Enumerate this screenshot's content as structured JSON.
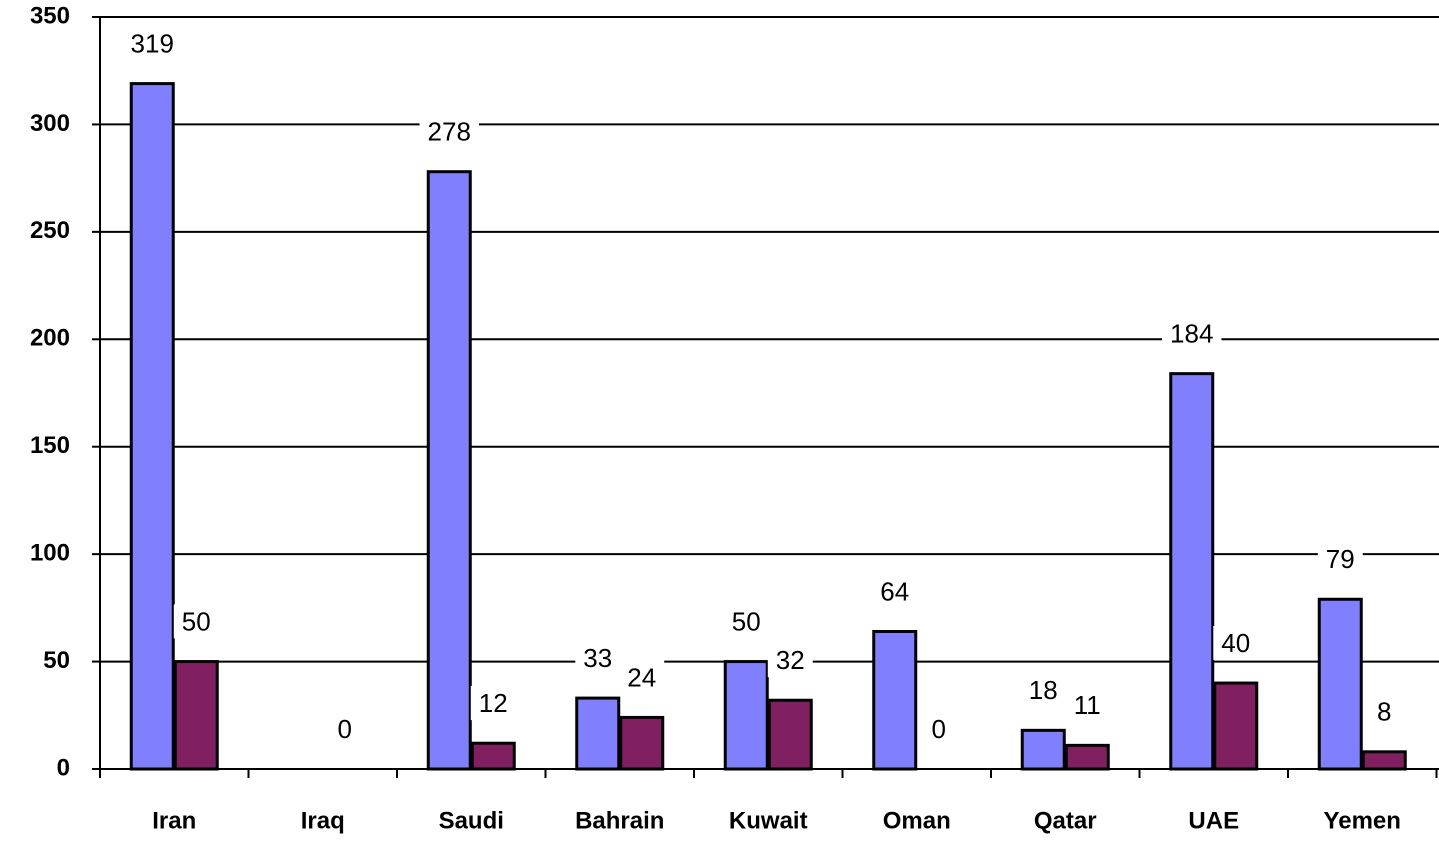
{
  "chart_data": {
    "type": "bar",
    "categories": [
      "Iran",
      "Iraq",
      "Saudi",
      "Bahrain",
      "Kuwait",
      "Oman",
      "Qatar",
      "UAE",
      "Yemen"
    ],
    "series": [
      {
        "color": "#8080ff",
        "values": [
          319,
          null,
          278,
          33,
          50,
          64,
          18,
          184,
          79
        ]
      },
      {
        "color": "#802060",
        "values": [
          50,
          0,
          12,
          24,
          32,
          0,
          11,
          40,
          8
        ]
      }
    ],
    "ylim": [
      0,
      350
    ],
    "yticks": [
      0,
      50,
      100,
      150,
      200,
      250,
      300,
      350
    ],
    "grid": true
  }
}
